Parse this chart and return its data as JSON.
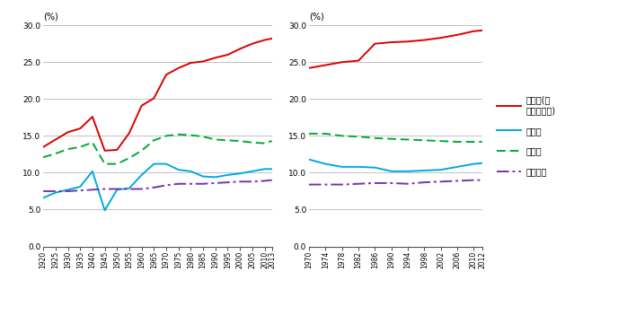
{
  "left_years": [
    1920,
    1925,
    1930,
    1935,
    1940,
    1945,
    1950,
    1955,
    1960,
    1965,
    1970,
    1975,
    1980,
    1985,
    1990,
    1995,
    2000,
    2005,
    2010,
    2013
  ],
  "left_shuto": [
    13.5,
    14.5,
    15.5,
    16.0,
    17.6,
    13.0,
    13.1,
    15.4,
    19.1,
    20.1,
    23.3,
    24.2,
    24.9,
    25.1,
    25.6,
    26.0,
    26.8,
    27.5,
    28.0,
    28.2
  ],
  "left_tokyo": [
    6.6,
    7.3,
    7.7,
    8.1,
    10.2,
    4.9,
    7.7,
    7.9,
    9.7,
    11.2,
    11.2,
    10.4,
    10.2,
    9.5,
    9.4,
    9.7,
    9.9,
    10.2,
    10.5,
    10.5
  ],
  "left_osaka": [
    12.1,
    12.6,
    13.2,
    13.5,
    14.1,
    11.2,
    11.2,
    12.0,
    13.0,
    14.4,
    15.0,
    15.2,
    15.1,
    14.9,
    14.5,
    14.4,
    14.3,
    14.1,
    14.0,
    14.3
  ],
  "left_nagoya": [
    7.5,
    7.5,
    7.5,
    7.6,
    7.7,
    7.8,
    7.8,
    7.8,
    7.8,
    8.0,
    8.3,
    8.5,
    8.5,
    8.5,
    8.6,
    8.7,
    8.8,
    8.8,
    8.9,
    9.0
  ],
  "right_years": [
    1970,
    1974,
    1978,
    1982,
    1986,
    1990,
    1994,
    1998,
    2002,
    2006,
    2010,
    2012
  ],
  "right_shuto": [
    24.2,
    24.6,
    25.0,
    25.2,
    27.5,
    27.7,
    27.8,
    28.0,
    28.3,
    28.7,
    29.2,
    29.3
  ],
  "right_tokyo": [
    11.8,
    11.2,
    10.8,
    10.8,
    10.7,
    10.2,
    10.2,
    10.3,
    10.4,
    10.8,
    11.2,
    11.3
  ],
  "right_osaka": [
    15.3,
    15.3,
    15.0,
    14.9,
    14.7,
    14.6,
    14.5,
    14.4,
    14.3,
    14.2,
    14.2,
    14.2
  ],
  "right_nagoya": [
    8.4,
    8.4,
    8.4,
    8.5,
    8.6,
    8.6,
    8.5,
    8.7,
    8.8,
    8.9,
    9.0,
    9.0
  ],
  "color_shuto": "#dd0000",
  "color_tokyo": "#00aadd",
  "color_osaka": "#00aa33",
  "color_nagoya": "#7733aa",
  "ylim_min": 0.0,
  "ylim_max": 30.0,
  "yticks": [
    0.0,
    5.0,
    10.0,
    15.0,
    20.0,
    25.0,
    30.0
  ],
  "label_shuto": "首都圈(東\n京都を含む)",
  "label_tokyo": "東京都",
  "label_osaka": "大阪圈",
  "label_nagoya": "名古屋圈",
  "ylabel": "(%)"
}
